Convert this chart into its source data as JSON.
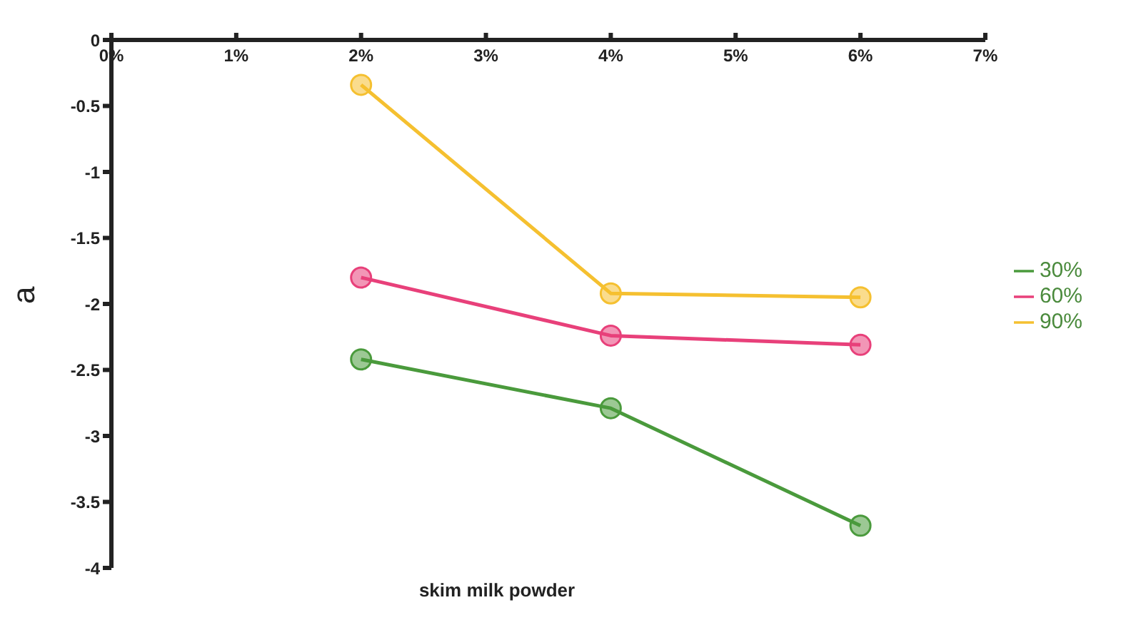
{
  "chart_data": {
    "type": "line",
    "xlabel": "skim milk powder",
    "ylabel": "a",
    "xlim": [
      0,
      7
    ],
    "xticks": [
      {
        "value": 0,
        "label": "0%"
      },
      {
        "value": 1,
        "label": "1%"
      },
      {
        "value": 2,
        "label": "2%"
      },
      {
        "value": 3,
        "label": "3%"
      },
      {
        "value": 4,
        "label": "4%"
      },
      {
        "value": 5,
        "label": "5%"
      },
      {
        "value": 6,
        "label": "6%"
      },
      {
        "value": 7,
        "label": "7%"
      }
    ],
    "ylim": [
      -4,
      0
    ],
    "yticks": [
      0,
      -0.5,
      -1,
      -1.5,
      -2,
      -2.5,
      -3,
      -3.5,
      -4
    ],
    "x": [
      2,
      4,
      6
    ],
    "series": [
      {
        "name": "30%",
        "color": "#4a9a3c",
        "values": [
          -2.42,
          -2.79,
          -3.68
        ]
      },
      {
        "name": "60%",
        "color": "#e8407a",
        "values": [
          -1.8,
          -2.24,
          -2.31
        ]
      },
      {
        "name": "90%",
        "color": "#f5c030",
        "values": [
          -0.34,
          -1.92,
          -1.95
        ]
      }
    ],
    "marker": "circle",
    "line_style": "solid",
    "legend": "right",
    "grid": false
  }
}
